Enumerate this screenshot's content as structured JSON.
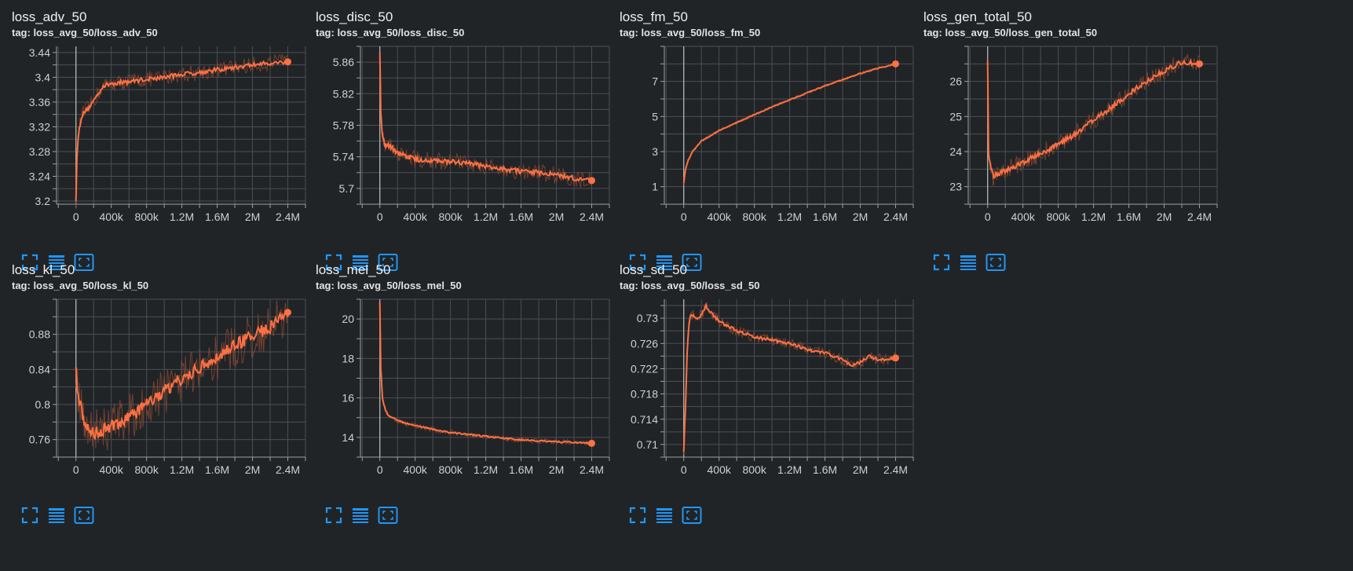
{
  "colors": {
    "background": "#212427",
    "line": "#ff7043",
    "raw_line": "#8a4a33",
    "grid": "#4a4f54",
    "icon": "#2196f3",
    "text": "#e8e8e8"
  },
  "icons": [
    "fullscreen-icon",
    "toggle-data-icon",
    "fit-domain-icon"
  ],
  "chart_data": [
    {
      "type": "line",
      "title": "loss_adv_50",
      "tag": "tag: loss_avg_50/loss_adv_50",
      "xlabel": "",
      "ylabel": "",
      "xlim": [
        -220000,
        2600000
      ],
      "ylim": [
        3.195,
        3.45
      ],
      "xticks": [
        0,
        400000,
        800000,
        1200000,
        1600000,
        2000000,
        2400000
      ],
      "xtick_labels": [
        "0",
        "400k",
        "800k",
        "1.2M",
        "1.6M",
        "2M",
        "2.4M"
      ],
      "yticks": [
        3.2,
        3.24,
        3.28,
        3.32,
        3.36,
        3.4,
        3.44
      ],
      "ytick_labels": [
        "3.2",
        "3.24",
        "3.28",
        "3.32",
        "3.36",
        "3.4",
        "3.44"
      ],
      "grid": true,
      "smoothed": true,
      "x": [
        0,
        10000,
        30000,
        60000,
        100000,
        150000,
        200000,
        300000,
        400000,
        600000,
        800000,
        1000000,
        1200000,
        1400000,
        1600000,
        1800000,
        2000000,
        2200000,
        2400000
      ],
      "y": [
        3.198,
        3.27,
        3.31,
        3.335,
        3.345,
        3.352,
        3.362,
        3.385,
        3.39,
        3.393,
        3.397,
        3.4,
        3.405,
        3.408,
        3.412,
        3.416,
        3.42,
        3.423,
        3.425
      ],
      "noise": 0.006
    },
    {
      "type": "line",
      "title": "loss_disc_50",
      "tag": "tag: loss_avg_50/loss_disc_50",
      "xlabel": "",
      "ylabel": "",
      "xlim": [
        -220000,
        2600000
      ],
      "ylim": [
        5.68,
        5.88
      ],
      "xticks": [
        0,
        400000,
        800000,
        1200000,
        1600000,
        2000000,
        2400000
      ],
      "xtick_labels": [
        "0",
        "400k",
        "800k",
        "1.2M",
        "1.6M",
        "2M",
        "2.4M"
      ],
      "yticks": [
        5.7,
        5.74,
        5.78,
        5.82,
        5.86
      ],
      "ytick_labels": [
        "5.7",
        "5.74",
        "5.78",
        "5.82",
        "5.86"
      ],
      "grid": true,
      "smoothed": true,
      "x": [
        0,
        10000,
        30000,
        60000,
        100000,
        200000,
        400000,
        600000,
        800000,
        1000000,
        1200000,
        1400000,
        1600000,
        1800000,
        2000000,
        2200000,
        2400000
      ],
      "y": [
        5.875,
        5.8,
        5.765,
        5.755,
        5.755,
        5.745,
        5.737,
        5.735,
        5.734,
        5.732,
        5.728,
        5.725,
        5.722,
        5.72,
        5.717,
        5.713,
        5.71
      ],
      "noise": 0.005
    },
    {
      "type": "line",
      "title": "loss_fm_50",
      "tag": "tag: loss_avg_50/loss_fm_50",
      "xlabel": "",
      "ylabel": "",
      "xlim": [
        -220000,
        2600000
      ],
      "ylim": [
        0.0,
        9.0
      ],
      "xticks": [
        0,
        400000,
        800000,
        1200000,
        1600000,
        2000000,
        2400000
      ],
      "xtick_labels": [
        "0",
        "400k",
        "800k",
        "1.2M",
        "1.6M",
        "2M",
        "2.4M"
      ],
      "yticks": [
        1,
        3,
        5,
        7
      ],
      "ytick_labels": [
        "1",
        "3",
        "5",
        "7"
      ],
      "grid": true,
      "smoothed": true,
      "x": [
        0,
        20000,
        50000,
        100000,
        200000,
        400000,
        600000,
        800000,
        1000000,
        1200000,
        1400000,
        1600000,
        1800000,
        2000000,
        2200000,
        2400000
      ],
      "y": [
        1.2,
        2.0,
        2.5,
        3.0,
        3.6,
        4.2,
        4.65,
        5.1,
        5.55,
        5.95,
        6.35,
        6.75,
        7.1,
        7.45,
        7.75,
        8.0
      ],
      "noise": 0.04
    },
    {
      "type": "line",
      "title": "loss_gen_total_50",
      "tag": "tag: loss_avg_50/loss_gen_total_50",
      "xlabel": "",
      "ylabel": "",
      "xlim": [
        -220000,
        2600000
      ],
      "ylim": [
        22.5,
        27.0
      ],
      "xticks": [
        0,
        400000,
        800000,
        1200000,
        1600000,
        2000000,
        2400000
      ],
      "xtick_labels": [
        "0",
        "400k",
        "800k",
        "1.2M",
        "1.6M",
        "2M",
        "2.4M"
      ],
      "yticks": [
        23,
        24,
        25,
        26
      ],
      "ytick_labels": [
        "23",
        "24",
        "25",
        "26"
      ],
      "grid": true,
      "smoothed": true,
      "x": [
        0,
        10000,
        30000,
        60000,
        100000,
        200000,
        400000,
        600000,
        800000,
        1000000,
        1200000,
        1400000,
        1600000,
        1800000,
        2000000,
        2200000,
        2400000
      ],
      "y": [
        26.6,
        24.0,
        23.6,
        23.3,
        23.35,
        23.45,
        23.7,
        23.95,
        24.2,
        24.5,
        24.9,
        25.25,
        25.65,
        26.0,
        26.3,
        26.55,
        26.5
      ],
      "noise": 0.12
    },
    {
      "type": "line",
      "title": "loss_kl_50",
      "tag": "tag: loss_avg_50/loss_kl_50",
      "xlabel": "",
      "ylabel": "",
      "xlim": [
        -220000,
        2600000
      ],
      "ylim": [
        0.74,
        0.92
      ],
      "xticks": [
        0,
        400000,
        800000,
        1200000,
        1600000,
        2000000,
        2400000
      ],
      "xtick_labels": [
        "0",
        "400k",
        "800k",
        "1.2M",
        "1.6M",
        "2M",
        "2.4M"
      ],
      "yticks": [
        0.76,
        0.8,
        0.84,
        0.88
      ],
      "ytick_labels": [
        "0.76",
        "0.8",
        "0.84",
        "0.88"
      ],
      "grid": true,
      "smoothed": true,
      "x": [
        0,
        20000,
        60000,
        100000,
        150000,
        200000,
        300000,
        400000,
        600000,
        800000,
        1000000,
        1200000,
        1400000,
        1600000,
        1800000,
        2000000,
        2200000,
        2400000
      ],
      "y": [
        0.84,
        0.81,
        0.795,
        0.78,
        0.77,
        0.768,
        0.77,
        0.775,
        0.785,
        0.8,
        0.815,
        0.83,
        0.842,
        0.855,
        0.868,
        0.878,
        0.888,
        0.905
      ],
      "noise": 0.012
    },
    {
      "type": "line",
      "title": "loss_mel_50",
      "tag": "tag: loss_avg_50/loss_mel_50",
      "xlabel": "",
      "ylabel": "",
      "xlim": [
        -220000,
        2600000
      ],
      "ylim": [
        13.0,
        21.0
      ],
      "xticks": [
        0,
        400000,
        800000,
        1200000,
        1600000,
        2000000,
        2400000
      ],
      "xtick_labels": [
        "0",
        "400k",
        "800k",
        "1.2M",
        "1.6M",
        "2M",
        "2.4M"
      ],
      "yticks": [
        14,
        16,
        18,
        20
      ],
      "ytick_labels": [
        "14",
        "16",
        "18",
        "20"
      ],
      "grid": true,
      "smoothed": true,
      "x": [
        0,
        10000,
        30000,
        60000,
        100000,
        200000,
        300000,
        400000,
        600000,
        800000,
        1000000,
        1200000,
        1400000,
        1600000,
        1800000,
        2000000,
        2200000,
        2400000
      ],
      "y": [
        20.8,
        17.5,
        16.0,
        15.4,
        15.1,
        14.85,
        14.7,
        14.6,
        14.4,
        14.25,
        14.15,
        14.05,
        13.95,
        13.88,
        13.82,
        13.78,
        13.75,
        13.7
      ],
      "noise": 0.06
    },
    {
      "type": "line",
      "title": "loss_sd_50",
      "tag": "tag: loss_avg_50/loss_sd_50",
      "xlabel": "",
      "ylabel": "",
      "xlim": [
        -220000,
        2600000
      ],
      "ylim": [
        0.708,
        0.733
      ],
      "xticks": [
        0,
        400000,
        800000,
        1200000,
        1600000,
        2000000,
        2400000
      ],
      "xtick_labels": [
        "0",
        "400k",
        "800k",
        "1.2M",
        "1.6M",
        "2M",
        "2.4M"
      ],
      "yticks": [
        0.71,
        0.714,
        0.718,
        0.722,
        0.726,
        0.73
      ],
      "ytick_labels": [
        "0.71",
        "0.714",
        "0.718",
        "0.722",
        "0.726",
        "0.73"
      ],
      "grid": true,
      "smoothed": true,
      "x": [
        0,
        20000,
        40000,
        60000,
        80000,
        100000,
        150000,
        200000,
        250000,
        300000,
        400000,
        600000,
        800000,
        1000000,
        1200000,
        1400000,
        1600000,
        1800000,
        1900000,
        2000000,
        2100000,
        2200000,
        2300000,
        2400000
      ],
      "y": [
        0.709,
        0.716,
        0.725,
        0.729,
        0.7305,
        0.7305,
        0.73,
        0.7305,
        0.732,
        0.731,
        0.7295,
        0.728,
        0.727,
        0.7265,
        0.726,
        0.725,
        0.7245,
        0.7235,
        0.7225,
        0.723,
        0.724,
        0.7235,
        0.7235,
        0.7237
      ],
      "noise": 0.0004
    }
  ]
}
